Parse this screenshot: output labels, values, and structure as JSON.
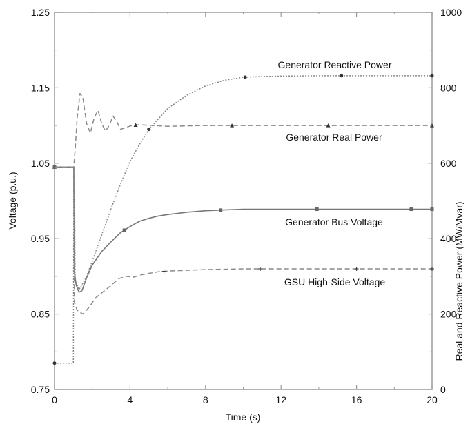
{
  "chart_data": {
    "type": "line",
    "title": "",
    "xlabel": "Time (s)",
    "ylabel_left": "Voltage (p.u.)",
    "ylabel_right": "Real and Reactive Power (MW/Mvar)",
    "xlim": [
      0,
      20
    ],
    "ylim_left": [
      0.75,
      1.25
    ],
    "ylim_right": [
      0,
      1000
    ],
    "x_ticks": [
      "0",
      "4",
      "8",
      "12",
      "16",
      "20"
    ],
    "y_left_ticks": [
      "0.75",
      "0.85",
      "0.95",
      "1.05",
      "1.15",
      "1.25"
    ],
    "y_right_ticks": [
      "0",
      "200",
      "400",
      "600",
      "800",
      "1000"
    ],
    "grid": false,
    "legend": "none (series labeled inline)",
    "series": [
      {
        "name": "Generator Reactive Power",
        "axis": "right",
        "style": "dotted",
        "marker": "circle",
        "color": "#888888",
        "points": [
          [
            0,
            70
          ],
          [
            1.0,
            70
          ],
          [
            1.02,
            590
          ],
          [
            1.05,
            590
          ],
          [
            1.1,
            290
          ],
          [
            1.3,
            265
          ],
          [
            1.6,
            290
          ],
          [
            2.0,
            340
          ],
          [
            2.5,
            410
          ],
          [
            3.0,
            480
          ],
          [
            3.5,
            545
          ],
          [
            4.0,
            605
          ],
          [
            4.5,
            650
          ],
          [
            5.0,
            690
          ],
          [
            6.0,
            745
          ],
          [
            7.0,
            780
          ],
          [
            8.0,
            805
          ],
          [
            9.0,
            820
          ],
          [
            10.0,
            828
          ],
          [
            11.0,
            830
          ],
          [
            12.0,
            831
          ],
          [
            14.0,
            832
          ],
          [
            16.0,
            832
          ],
          [
            18.0,
            832
          ],
          [
            20.0,
            832
          ]
        ],
        "marker_x": [
          0,
          5.0,
          10.1,
          15.2,
          20
        ]
      },
      {
        "name": "Generator Real Power",
        "axis": "right",
        "style": "dashed",
        "marker": "triangle",
        "color": "#8a8a8a",
        "points": [
          [
            0,
            590
          ],
          [
            1.0,
            590
          ],
          [
            1.02,
            590
          ],
          [
            1.1,
            640
          ],
          [
            1.2,
            720
          ],
          [
            1.35,
            785
          ],
          [
            1.5,
            775
          ],
          [
            1.7,
            705
          ],
          [
            1.9,
            680
          ],
          [
            2.1,
            720
          ],
          [
            2.3,
            740
          ],
          [
            2.5,
            705
          ],
          [
            2.7,
            685
          ],
          [
            2.9,
            700
          ],
          [
            3.1,
            725
          ],
          [
            3.3,
            710
          ],
          [
            3.5,
            690
          ],
          [
            3.8,
            695
          ],
          [
            4.1,
            700
          ],
          [
            4.5,
            702
          ],
          [
            6.0,
            698
          ],
          [
            8.0,
            700
          ],
          [
            10.0,
            700
          ],
          [
            14.0,
            700
          ],
          [
            20.0,
            700
          ]
        ],
        "marker_x": [
          0,
          4.3,
          9.4,
          14.5,
          20
        ]
      },
      {
        "name": "Generator Bus Voltage",
        "axis": "left",
        "style": "solid",
        "marker": "square",
        "color": "#777777",
        "points": [
          [
            0,
            1.045
          ],
          [
            1.0,
            1.045
          ],
          [
            1.02,
            1.045
          ],
          [
            1.05,
            0.905
          ],
          [
            1.15,
            0.888
          ],
          [
            1.3,
            0.879
          ],
          [
            1.45,
            0.881
          ],
          [
            1.7,
            0.898
          ],
          [
            2.0,
            0.915
          ],
          [
            2.5,
            0.933
          ],
          [
            3.0,
            0.946
          ],
          [
            3.5,
            0.958
          ],
          [
            4.0,
            0.966
          ],
          [
            4.5,
            0.973
          ],
          [
            5.0,
            0.977
          ],
          [
            5.5,
            0.98
          ],
          [
            6.0,
            0.982
          ],
          [
            7.0,
            0.985
          ],
          [
            8.0,
            0.987
          ],
          [
            9.0,
            0.988
          ],
          [
            10.0,
            0.989
          ],
          [
            12.0,
            0.989
          ],
          [
            14.0,
            0.989
          ],
          [
            16.0,
            0.989
          ],
          [
            18.0,
            0.989
          ],
          [
            20.0,
            0.989
          ]
        ],
        "marker_x": [
          0,
          3.7,
          8.8,
          13.9,
          18.9,
          20
        ]
      },
      {
        "name": "GSU High-Side Voltage",
        "axis": "left",
        "style": "dashed",
        "marker": "plus",
        "color": "#8a8a8a",
        "points": [
          [
            0,
            1.045
          ],
          [
            1.0,
            1.045
          ],
          [
            1.02,
            1.045
          ],
          [
            1.05,
            0.866
          ],
          [
            1.2,
            0.855
          ],
          [
            1.5,
            0.85
          ],
          [
            1.8,
            0.858
          ],
          [
            2.2,
            0.872
          ],
          [
            2.6,
            0.88
          ],
          [
            3.0,
            0.888
          ],
          [
            3.4,
            0.897
          ],
          [
            3.8,
            0.9
          ],
          [
            4.2,
            0.899
          ],
          [
            4.6,
            0.902
          ],
          [
            5.0,
            0.904
          ],
          [
            5.5,
            0.906
          ],
          [
            6.0,
            0.907
          ],
          [
            7.0,
            0.908
          ],
          [
            8.0,
            0.909
          ],
          [
            10.0,
            0.91
          ],
          [
            12.0,
            0.91
          ],
          [
            14.0,
            0.91
          ],
          [
            16.0,
            0.91
          ],
          [
            18.0,
            0.91
          ],
          [
            20.0,
            0.91
          ]
        ],
        "marker_x": [
          5.8,
          10.9,
          16.0,
          20
        ]
      }
    ]
  },
  "colors": {
    "axis": "#9a9a9a",
    "text": "#111111",
    "background": "#ffffff"
  }
}
